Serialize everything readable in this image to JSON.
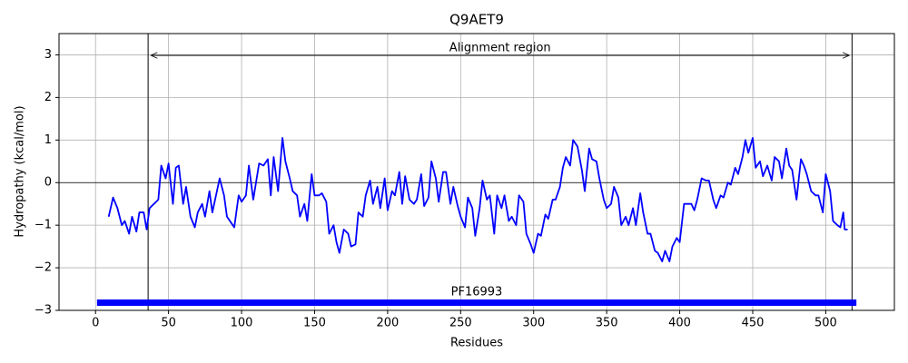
{
  "chart_data": {
    "type": "line",
    "title": "Q9AET9",
    "xlabel": "Residues",
    "ylabel": "Hydropathy (kcal/mol)",
    "color": "#0000ff",
    "grid": true,
    "xlim": [
      -25,
      547
    ],
    "ylim": [
      -3,
      3.5
    ],
    "xticks": [
      0,
      50,
      100,
      150,
      200,
      250,
      300,
      350,
      400,
      450,
      500
    ],
    "yticks": [
      {
        "value": -3,
        "label": "−3"
      },
      {
        "value": -2,
        "label": "−2"
      },
      {
        "value": -1,
        "label": "−1"
      },
      0,
      1,
      2,
      3
    ],
    "alignment_region": {
      "label": "Alignment region",
      "start": 36,
      "end": 518
    },
    "domains": [
      {
        "name": "PF16993",
        "start": 1,
        "end": 521,
        "color": "#0000ff"
      }
    ],
    "x": [
      9,
      12,
      15,
      18,
      20,
      23,
      25,
      28,
      30,
      33,
      35,
      37,
      40,
      43,
      45,
      48,
      50,
      53,
      55,
      57,
      60,
      62,
      65,
      68,
      70,
      73,
      75,
      78,
      80,
      85,
      88,
      90,
      95,
      98,
      100,
      103,
      105,
      108,
      112,
      115,
      118,
      120,
      122,
      125,
      128,
      130,
      133,
      135,
      138,
      140,
      143,
      145,
      148,
      150,
      153,
      155,
      158,
      160,
      163,
      165,
      167,
      170,
      173,
      175,
      178,
      180,
      183,
      185,
      188,
      190,
      193,
      195,
      198,
      200,
      203,
      205,
      208,
      210,
      212,
      215,
      218,
      220,
      223,
      225,
      228,
      230,
      233,
      235,
      238,
      240,
      243,
      245,
      248,
      250,
      253,
      255,
      258,
      260,
      263,
      265,
      268,
      270,
      273,
      275,
      278,
      280,
      283,
      285,
      288,
      290,
      293,
      295,
      298,
      300,
      303,
      305,
      308,
      310,
      313,
      315,
      318,
      320,
      322,
      325,
      327,
      330,
      333,
      335,
      338,
      340,
      343,
      345,
      348,
      350,
      353,
      355,
      358,
      360,
      363,
      365,
      368,
      370,
      373,
      375,
      378,
      380,
      383,
      385,
      388,
      390,
      393,
      395,
      398,
      400,
      403,
      405,
      408,
      410,
      412,
      415,
      418,
      420,
      423,
      425,
      428,
      430,
      433,
      435,
      438,
      440,
      443,
      445,
      447,
      450,
      452,
      455,
      457,
      460,
      463,
      465,
      468,
      470,
      473,
      475,
      477,
      480,
      483,
      485,
      487,
      490,
      493,
      495,
      498,
      500,
      503,
      505,
      508,
      510,
      512,
      513,
      515
    ],
    "values": [
      -0.8,
      -0.35,
      -0.6,
      -1.0,
      -0.9,
      -1.2,
      -0.8,
      -1.15,
      -0.7,
      -0.7,
      -1.1,
      -0.6,
      -0.5,
      -0.4,
      0.4,
      0.1,
      0.45,
      -0.5,
      0.35,
      0.4,
      -0.5,
      -0.1,
      -0.8,
      -1.05,
      -0.7,
      -0.5,
      -0.8,
      -0.2,
      -0.7,
      0.1,
      -0.3,
      -0.8,
      -1.05,
      -0.3,
      -0.45,
      -0.3,
      0.4,
      -0.4,
      0.45,
      0.4,
      0.55,
      -0.3,
      0.6,
      -0.2,
      1.05,
      0.5,
      0.1,
      -0.2,
      -0.3,
      -0.8,
      -0.5,
      -0.9,
      0.2,
      -0.3,
      -0.3,
      -0.25,
      -0.45,
      -1.2,
      -1.0,
      -1.4,
      -1.65,
      -1.1,
      -1.2,
      -1.5,
      -1.45,
      -0.7,
      -0.8,
      -0.3,
      0.05,
      -0.5,
      -0.1,
      -0.6,
      0.1,
      -0.65,
      -0.2,
      -0.3,
      0.25,
      -0.5,
      0.15,
      -0.4,
      -0.5,
      -0.4,
      0.2,
      -0.55,
      -0.35,
      0.5,
      0.1,
      -0.45,
      0.25,
      0.25,
      -0.5,
      -0.1,
      -0.55,
      -0.8,
      -1.05,
      -0.35,
      -0.6,
      -1.25,
      -0.6,
      0.05,
      -0.4,
      -0.3,
      -1.2,
      -0.3,
      -0.6,
      -0.3,
      -0.9,
      -0.8,
      -1.0,
      -0.3,
      -0.45,
      -1.2,
      -1.45,
      -1.65,
      -1.2,
      -1.25,
      -0.75,
      -0.85,
      -0.4,
      -0.4,
      -0.1,
      0.35,
      0.6,
      0.4,
      1.0,
      0.85,
      0.3,
      -0.2,
      0.8,
      0.55,
      0.5,
      0.1,
      -0.4,
      -0.6,
      -0.5,
      -0.1,
      -0.35,
      -1.0,
      -0.8,
      -1.0,
      -0.6,
      -1.0,
      -0.25,
      -0.7,
      -1.2,
      -1.2,
      -1.6,
      -1.65,
      -1.85,
      -1.6,
      -1.85,
      -1.5,
      -1.3,
      -1.4,
      -0.5,
      -0.5,
      -0.5,
      -0.65,
      -0.4,
      0.1,
      0.05,
      0.05,
      -0.4,
      -0.6,
      -0.3,
      -0.35,
      0.0,
      -0.05,
      0.35,
      0.2,
      0.6,
      1.0,
      0.7,
      1.05,
      0.35,
      0.5,
      0.15,
      0.4,
      0.05,
      0.6,
      0.5,
      0.1,
      0.8,
      0.4,
      0.3,
      -0.4,
      0.55,
      0.4,
      0.2,
      -0.2,
      -0.3,
      -0.3,
      -0.7,
      0.2,
      -0.2,
      -0.9,
      -1.0,
      -1.05,
      -0.7,
      -1.1,
      -1.1
    ]
  }
}
